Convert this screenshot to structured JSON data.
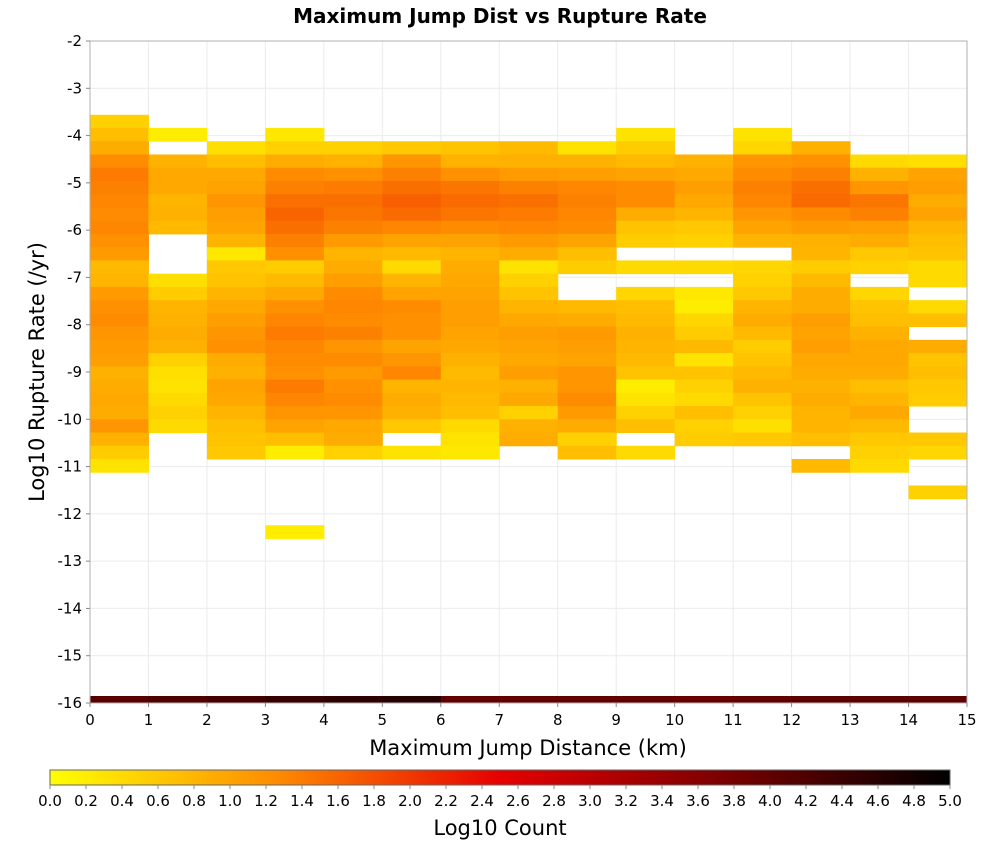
{
  "chart_data": {
    "type": "heatmap",
    "title": "Maximum Jump Dist vs Rupture Rate",
    "xlabel": "Maximum Jump Distance (km)",
    "ylabel": "Log10 Rupture Rate (/yr)",
    "xlim": [
      0,
      15
    ],
    "ylim": [
      -16,
      -2
    ],
    "x_ticks": [
      "0",
      "1",
      "2",
      "3",
      "4",
      "5",
      "6",
      "7",
      "8",
      "9",
      "10",
      "11",
      "12",
      "13",
      "14",
      "15"
    ],
    "y_ticks": [
      "-2",
      "-3",
      "-4",
      "-5",
      "-6",
      "-7",
      "-8",
      "-9",
      "-10",
      "-11",
      "-12",
      "-13",
      "-14",
      "-15",
      "-16"
    ],
    "grid": true,
    "colorbar": {
      "label": "Log10 Count",
      "range": [
        0,
        5
      ],
      "ticks": [
        "0.0",
        "0.2",
        "0.4",
        "0.6",
        "0.8",
        "1.0",
        "1.2",
        "1.4",
        "1.6",
        "1.8",
        "2.0",
        "2.2",
        "2.4",
        "2.6",
        "2.8",
        "3.0",
        "3.2",
        "3.4",
        "3.6",
        "3.8",
        "4.0",
        "4.2",
        "4.4",
        "4.6",
        "4.8",
        "5.0"
      ],
      "colors": [
        "#ffff00",
        "#ff8c00",
        "#e60000",
        "#7a0000",
        "#000000"
      ]
    },
    "x_bin_width": 1,
    "y_bin_height": 0.28,
    "columns": [
      {
        "x": 0,
        "y_top": -3.56,
        "values": [
          0.5,
          0.7,
          0.9,
          1.25,
          1.4,
          1.35,
          1.3,
          1.25,
          1.3,
          1.2,
          1.1,
          0.75,
          0.8,
          1.1,
          1.2,
          1.25,
          1.15,
          1.1,
          1.05,
          0.85,
          0.9,
          0.95,
          0.9,
          1.15,
          0.85,
          0.55,
          0.3
        ]
      },
      {
        "x": 1,
        "y_top": -3.84,
        "values": [
          0.2,
          null,
          0.85,
          0.95,
          0.95,
          0.8,
          0.85,
          0.75,
          null,
          null,
          null,
          0.35,
          0.55,
          0.8,
          0.85,
          0.9,
          0.85,
          0.5,
          0.35,
          0.3,
          0.4,
          0.5,
          0.4
        ]
      },
      {
        "x": 2,
        "y_top": -4.12,
        "values": [
          0.35,
          0.7,
          0.95,
          1.0,
          1.15,
          1.05,
          1.0,
          0.8,
          0.25,
          0.6,
          0.65,
          0.8,
          0.95,
          1.05,
          1.15,
          1.2,
          0.9,
          0.85,
          1.0,
          0.95,
          0.8,
          0.7,
          0.65,
          0.6
        ]
      },
      {
        "x": 3,
        "y_top": -3.84,
        "values": [
          0.25,
          0.5,
          0.9,
          1.25,
          1.35,
          1.5,
          1.6,
          1.5,
          1.35,
          1.2,
          0.55,
          0.75,
          0.95,
          1.2,
          1.3,
          1.4,
          1.3,
          1.25,
          1.2,
          1.4,
          1.3,
          1.15,
          1.0,
          0.7,
          0.2,
          null,
          null,
          null,
          null,
          null,
          0.2
        ]
      },
      {
        "x": 4,
        "y_top": -4.12,
        "values": [
          0.5,
          0.85,
          1.2,
          1.4,
          1.5,
          1.45,
          1.35,
          1.1,
          0.8,
          0.9,
          1.05,
          1.25,
          1.3,
          1.25,
          1.35,
          1.15,
          1.25,
          1.1,
          1.2,
          1.25,
          1.15,
          0.95,
          0.9,
          0.5
        ]
      },
      {
        "x": 5,
        "y_top": -4.12,
        "values": [
          0.6,
          1.15,
          1.35,
          1.5,
          1.65,
          1.55,
          1.3,
          1.0,
          0.75,
          0.4,
          0.8,
          1.0,
          1.25,
          1.2,
          1.2,
          1.0,
          1.15,
          1.3,
          0.8,
          0.9,
          0.85,
          0.6,
          null,
          0.3
        ]
      },
      {
        "x": 6,
        "y_top": -4.12,
        "values": [
          0.65,
          0.85,
          1.2,
          1.45,
          1.55,
          1.45,
          1.25,
          1.0,
          0.8,
          0.9,
          0.95,
          1.0,
          1.05,
          1.05,
          1.0,
          0.95,
          0.85,
          0.75,
          0.8,
          0.75,
          0.7,
          0.4,
          0.3,
          0.25
        ]
      },
      {
        "x": 7,
        "y_top": -4.12,
        "values": [
          0.75,
          0.85,
          1.1,
          1.35,
          1.5,
          1.4,
          1.3,
          1.1,
          0.9,
          0.3,
          0.5,
          0.65,
          0.8,
          0.95,
          1.05,
          1.0,
          0.95,
          1.05,
          0.85,
          0.95,
          0.5,
          0.85,
          0.9
        ]
      },
      {
        "x": 8,
        "y_top": -4.12,
        "values": [
          0.3,
          0.85,
          1.05,
          1.3,
          1.35,
          1.3,
          1.25,
          1.0,
          0.7,
          0.55,
          null,
          null,
          0.75,
          0.9,
          1.1,
          1.05,
          1.0,
          1.15,
          1.15,
          1.25,
          1.1,
          0.9,
          0.5,
          0.7
        ]
      },
      {
        "x": 9,
        "y_top": -3.84,
        "values": [
          0.3,
          0.55,
          0.75,
          1.0,
          1.25,
          1.25,
          0.9,
          0.65,
          0.55,
          null,
          0.4,
          null,
          0.45,
          0.7,
          0.75,
          0.85,
          0.8,
          0.75,
          0.65,
          0.2,
          0.3,
          0.5,
          0.7,
          null,
          0.4
        ]
      },
      {
        "x": 10,
        "y_top": -4.4,
        "values": [
          0.85,
          0.95,
          1.05,
          0.95,
          0.8,
          0.6,
          0.5,
          null,
          0.4,
          null,
          0.25,
          0.2,
          0.45,
          0.55,
          0.75,
          0.3,
          0.65,
          0.5,
          0.4,
          0.7,
          0.5,
          0.55
        ]
      },
      {
        "x": 11,
        "y_top": -3.84,
        "values": [
          0.3,
          0.45,
          1.15,
          1.25,
          1.35,
          1.3,
          1.15,
          1.0,
          0.8,
          null,
          0.45,
          0.5,
          0.6,
          0.8,
          0.9,
          0.75,
          0.55,
          0.65,
          0.75,
          0.85,
          0.65,
          0.5,
          0.35,
          0.6
        ]
      },
      {
        "x": 12,
        "y_top": -4.12,
        "values": [
          0.85,
          1.2,
          1.35,
          1.5,
          1.55,
          1.25,
          1.1,
          0.85,
          0.8,
          0.55,
          0.75,
          0.9,
          0.9,
          1.05,
          1.0,
          1.05,
          0.95,
          0.9,
          0.85,
          0.9,
          0.8,
          0.8,
          0.7,
          null,
          0.75
        ]
      },
      {
        "x": 13,
        "y_top": -4.4,
        "values": [
          0.4,
          0.85,
          1.15,
          1.45,
          1.35,
          1.05,
          0.9,
          0.6,
          0.5,
          null,
          0.45,
          0.65,
          0.7,
          0.85,
          0.95,
          0.95,
          0.9,
          0.7,
          0.8,
          0.95,
          0.75,
          0.6,
          0.5,
          0.4
        ]
      },
      {
        "x": 14,
        "y_top": -4.4,
        "values": [
          0.35,
          1.0,
          1.05,
          0.9,
          1.0,
          0.8,
          0.7,
          0.65,
          0.4,
          0.4,
          null,
          0.4,
          0.7,
          null,
          0.9,
          0.65,
          0.7,
          0.6,
          0.55,
          null,
          null,
          0.6,
          0.45,
          null,
          null,
          0.5
        ]
      }
    ],
    "bottom_strip": {
      "y": -16,
      "values": [
        4.1,
        4.2,
        4.3,
        4.45,
        4.55,
        4.6,
        4.0,
        4.0,
        4.0,
        4.0,
        3.95,
        4.0,
        4.05,
        4.05,
        4.05
      ]
    }
  }
}
